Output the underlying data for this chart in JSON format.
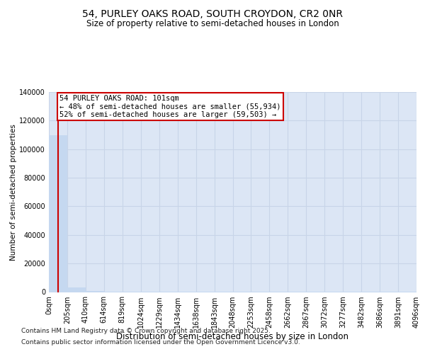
{
  "title": "54, PURLEY OAKS ROAD, SOUTH CROYDON, CR2 0NR",
  "subtitle": "Size of property relative to semi-detached houses in London",
  "xlabel": "Distribution of semi-detached houses by size in London",
  "ylabel": "Number of semi-detached properties",
  "property_size": 101,
  "annotation_lines": [
    "54 PURLEY OAKS ROAD: 101sqm",
    "← 48% of semi-detached houses are smaller (55,934)",
    "52% of semi-detached houses are larger (59,503) →"
  ],
  "bar_edges": [
    0,
    205,
    410,
    614,
    819,
    1024,
    1229,
    1434,
    1638,
    1843,
    2048,
    2253,
    2458,
    2662,
    2867,
    3072,
    3277,
    3482,
    3686,
    3891,
    4096
  ],
  "bar_heights": [
    110000,
    3200,
    800,
    300,
    150,
    90,
    60,
    40,
    30,
    20,
    15,
    12,
    10,
    8,
    6,
    5,
    4,
    3,
    2,
    2
  ],
  "bar_color": "#c5d8f0",
  "bar_edge_color": "#c5d8f0",
  "grid_color": "#c8d4e8",
  "background_color": "#dce6f5",
  "vline_color": "#cc0000",
  "annotation_box_color": "#cc0000",
  "ylim": [
    0,
    140000
  ],
  "yticks": [
    0,
    20000,
    40000,
    60000,
    80000,
    100000,
    120000,
    140000
  ],
  "footer_line1": "Contains HM Land Registry data © Crown copyright and database right 2025.",
  "footer_line2": "Contains public sector information licensed under the Open Government Licence v3.0.",
  "title_fontsize": 10,
  "subtitle_fontsize": 8.5,
  "tick_fontsize": 7,
  "ylabel_fontsize": 7.5,
  "xlabel_fontsize": 8.5,
  "footer_fontsize": 6.5
}
